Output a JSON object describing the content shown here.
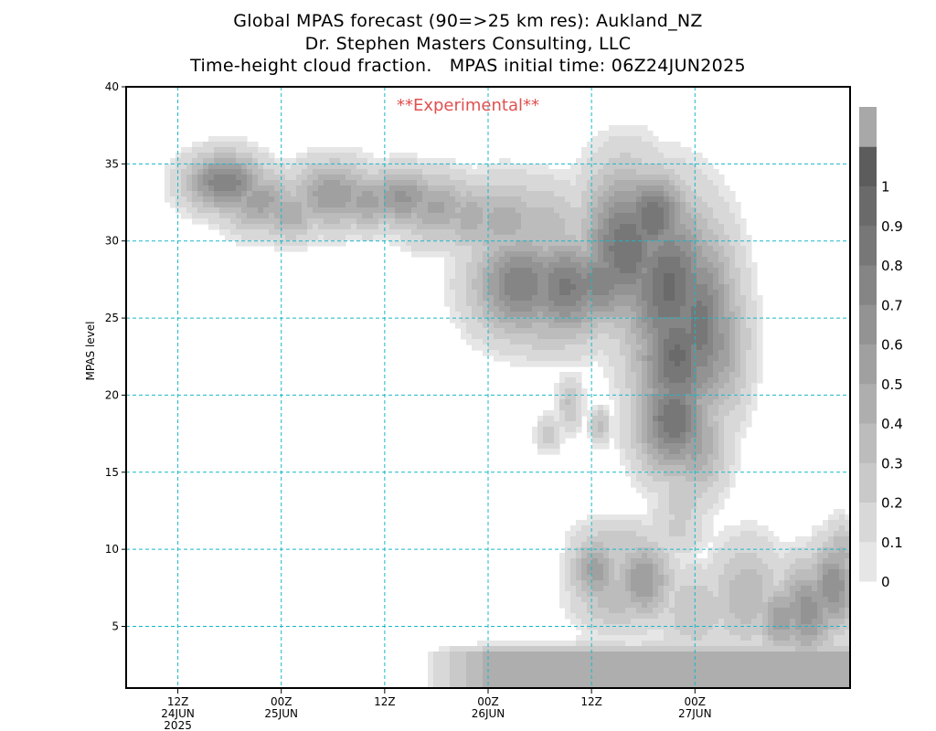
{
  "title_lines": [
    "Global MPAS forecast (90=>25 km res): Aukland_NZ",
    "Dr. Stephen Masters Consulting, LLC",
    "Time-height cloud fraction.   MPAS initial time: 06Z24JUN2025"
  ],
  "chart_data": {
    "type": "heatmap",
    "ylabel": "MPAS level",
    "annotation": "**Experimental**",
    "y_ticks": [
      5,
      10,
      15,
      20,
      25,
      30,
      35,
      40
    ],
    "ylim": [
      1,
      40
    ],
    "x_range_hours_from_06Z24JUN2025": [
      0,
      84
    ],
    "x_ticks": [
      {
        "hour": 6,
        "label": [
          "12Z",
          "24JUN",
          "2025"
        ]
      },
      {
        "hour": 18,
        "label": [
          "00Z",
          "25JUN"
        ]
      },
      {
        "hour": 30,
        "label": [
          "12Z"
        ]
      },
      {
        "hour": 42,
        "label": [
          "00Z",
          "26JUN"
        ]
      },
      {
        "hour": 54,
        "label": [
          "12Z"
        ]
      },
      {
        "hour": 66,
        "label": [
          "00Z",
          "27JUN"
        ]
      }
    ],
    "grid": true,
    "colorbar": {
      "levels": [
        "0",
        "0.1",
        "0.2",
        "0.3",
        "0.4",
        "0.5",
        "0.6",
        "0.7",
        "0.8",
        "0.9",
        "1"
      ],
      "colors": [
        "#e6e6e6",
        "#d8d8d8",
        "#c9c9c9",
        "#bcbcbc",
        "#aeaeae",
        "#a0a0a0",
        "#939393",
        "#858585",
        "#777777",
        "#6a6a6a",
        "#5c5c5c",
        "#a8a8a8"
      ]
    },
    "cloud_regions": [
      {
        "name": "upper-band",
        "level_range": [
          28,
          35
        ],
        "hour_range": [
          8,
          56
        ],
        "max_fraction": 0.8
      },
      {
        "name": "main-deep-cloud",
        "level_range": [
          14,
          34
        ],
        "hour_range": [
          42,
          71
        ],
        "max_fraction": 0.9
      },
      {
        "name": "mid-isolated-cells",
        "level_range": [
          16,
          21
        ],
        "hour_range": [
          47,
          56
        ],
        "max_fraction": 0.3
      },
      {
        "name": "low-cloud-cluster",
        "level_range": [
          4,
          12
        ],
        "hour_range": [
          52,
          84
        ],
        "max_fraction": 0.7
      },
      {
        "name": "surface-layer",
        "level_range": [
          1,
          4
        ],
        "hour_range": [
          34,
          84
        ],
        "max_fraction": 0.5
      }
    ]
  }
}
